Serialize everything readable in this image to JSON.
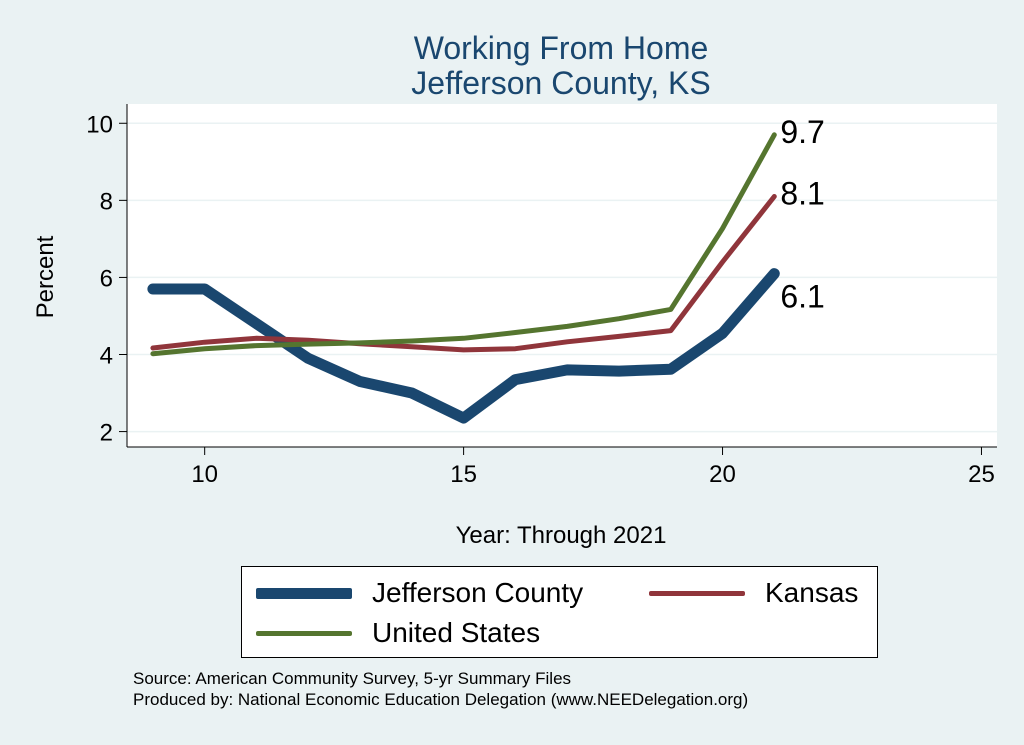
{
  "chart_data": {
    "type": "line",
    "title": [
      "Working From Home",
      "Jefferson County, KS"
    ],
    "xlabel": "Year: Through 2021",
    "ylabel": "Percent",
    "xlim": [
      8.5,
      25.3
    ],
    "ylim": [
      1.6,
      10.5
    ],
    "xticks": [
      10,
      15,
      20,
      25
    ],
    "yticks": [
      2,
      4,
      6,
      8,
      10
    ],
    "grid": true,
    "x": [
      9,
      10,
      11,
      12,
      13,
      14,
      15,
      16,
      17,
      18,
      19,
      20,
      21
    ],
    "series": [
      {
        "name": "Jefferson County",
        "color": "#1a476f",
        "width": "thick",
        "values": [
          5.7,
          5.7,
          4.8,
          3.9,
          3.3,
          3.0,
          2.35,
          3.35,
          3.6,
          3.57,
          3.62,
          4.55,
          6.1
        ],
        "end_label": "6.1"
      },
      {
        "name": "Kansas",
        "color": "#90353b",
        "width": "thin",
        "values": [
          4.17,
          4.32,
          4.42,
          4.37,
          4.28,
          4.2,
          4.12,
          4.15,
          4.33,
          4.47,
          4.62,
          6.4,
          8.1
        ],
        "end_label": "8.1"
      },
      {
        "name": "United States",
        "color": "#55752f",
        "width": "thin",
        "values": [
          4.02,
          4.15,
          4.23,
          4.27,
          4.3,
          4.35,
          4.42,
          4.57,
          4.73,
          4.93,
          5.17,
          7.27,
          9.7
        ],
        "end_label": "9.7"
      }
    ],
    "legend": [
      "Jefferson County",
      "Kansas",
      "United States"
    ],
    "legend_position": "bottom"
  },
  "footer": {
    "source": "Source: American Community Survey, 5-yr Summary Files",
    "produced": "Produced by: National Economic Education Delegation (www.NEEDelegation.org)"
  }
}
